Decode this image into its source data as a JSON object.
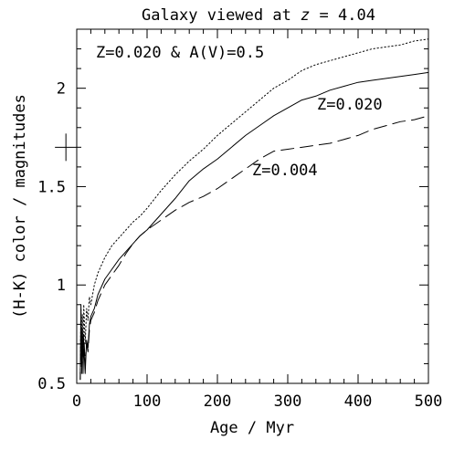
{
  "chart_data": {
    "type": "line",
    "title": "Galaxy viewed at z = 4.04",
    "xlabel": "Age / Myr",
    "ylabel": "(H-K) color / magnitudes",
    "xlim": [
      0,
      500
    ],
    "ylim": [
      0.5,
      2.3
    ],
    "x_ticks": [
      0,
      100,
      200,
      300,
      400,
      500
    ],
    "y_ticks": [
      0.5,
      1,
      1.5,
      2
    ],
    "x_tick_labels": [
      "0",
      "100",
      "200",
      "300",
      "400",
      "500"
    ],
    "y_tick_labels": [
      "0.5",
      "1",
      "1.5",
      "2"
    ],
    "x_minor_step": 20,
    "y_minor_step": 0.1,
    "grid": false,
    "legend": "none",
    "error_bar": {
      "x": 8,
      "y": 1.7
    },
    "series": [
      {
        "name": "Z=0.020",
        "style": "solid",
        "color": "#000000",
        "points": [
          [
            5,
            0.52
          ],
          [
            6,
            0.9
          ],
          [
            7,
            0.6
          ],
          [
            8,
            0.78
          ],
          [
            9,
            0.55
          ],
          [
            10,
            0.7
          ],
          [
            12,
            0.55
          ],
          [
            14,
            0.72
          ],
          [
            16,
            0.68
          ],
          [
            18,
            0.8
          ],
          [
            20,
            0.84
          ],
          [
            25,
            0.88
          ],
          [
            30,
            0.95
          ],
          [
            40,
            1.03
          ],
          [
            50,
            1.08
          ],
          [
            60,
            1.13
          ],
          [
            70,
            1.17
          ],
          [
            80,
            1.21
          ],
          [
            90,
            1.25
          ],
          [
            100,
            1.28
          ],
          [
            120,
            1.36
          ],
          [
            140,
            1.44
          ],
          [
            160,
            1.53
          ],
          [
            180,
            1.59
          ],
          [
            200,
            1.64
          ],
          [
            220,
            1.7
          ],
          [
            240,
            1.76
          ],
          [
            260,
            1.81
          ],
          [
            280,
            1.86
          ],
          [
            300,
            1.9
          ],
          [
            320,
            1.94
          ],
          [
            340,
            1.96
          ],
          [
            360,
            1.99
          ],
          [
            380,
            2.01
          ],
          [
            400,
            2.03
          ],
          [
            420,
            2.04
          ],
          [
            440,
            2.05
          ],
          [
            460,
            2.06
          ],
          [
            480,
            2.07
          ],
          [
            500,
            2.08
          ]
        ]
      },
      {
        "name": "Z=0.004",
        "style": "dashed",
        "color": "#000000",
        "points": [
          [
            5,
            0.52
          ],
          [
            6,
            0.78
          ],
          [
            7,
            0.55
          ],
          [
            8,
            0.72
          ],
          [
            9,
            0.6
          ],
          [
            10,
            0.75
          ],
          [
            12,
            0.6
          ],
          [
            14,
            0.7
          ],
          [
            16,
            0.66
          ],
          [
            18,
            0.77
          ],
          [
            20,
            0.82
          ],
          [
            25,
            0.86
          ],
          [
            30,
            0.92
          ],
          [
            40,
            1.0
          ],
          [
            50,
            1.05
          ],
          [
            60,
            1.1
          ],
          [
            70,
            1.16
          ],
          [
            80,
            1.21
          ],
          [
            90,
            1.25
          ],
          [
            100,
            1.28
          ],
          [
            120,
            1.33
          ],
          [
            140,
            1.38
          ],
          [
            160,
            1.42
          ],
          [
            180,
            1.45
          ],
          [
            200,
            1.49
          ],
          [
            220,
            1.54
          ],
          [
            240,
            1.59
          ],
          [
            260,
            1.64
          ],
          [
            280,
            1.68
          ],
          [
            300,
            1.69
          ],
          [
            320,
            1.7
          ],
          [
            340,
            1.71
          ],
          [
            360,
            1.72
          ],
          [
            380,
            1.74
          ],
          [
            400,
            1.76
          ],
          [
            420,
            1.79
          ],
          [
            440,
            1.81
          ],
          [
            460,
            1.83
          ],
          [
            480,
            1.84
          ],
          [
            500,
            1.86
          ]
        ]
      },
      {
        "name": "Z=0.020 & A(V)=0.5",
        "style": "dotted",
        "color": "#000000",
        "points": [
          [
            5,
            0.55
          ],
          [
            6,
            0.88
          ],
          [
            7,
            0.65
          ],
          [
            8,
            0.85
          ],
          [
            9,
            0.6
          ],
          [
            10,
            0.9
          ],
          [
            12,
            0.7
          ],
          [
            14,
            0.88
          ],
          [
            16,
            0.82
          ],
          [
            18,
            0.94
          ],
          [
            20,
            0.9
          ],
          [
            25,
            1.0
          ],
          [
            30,
            1.06
          ],
          [
            40,
            1.14
          ],
          [
            50,
            1.2
          ],
          [
            60,
            1.24
          ],
          [
            70,
            1.28
          ],
          [
            80,
            1.32
          ],
          [
            90,
            1.35
          ],
          [
            100,
            1.39
          ],
          [
            120,
            1.48
          ],
          [
            140,
            1.56
          ],
          [
            160,
            1.63
          ],
          [
            180,
            1.69
          ],
          [
            200,
            1.76
          ],
          [
            220,
            1.82
          ],
          [
            240,
            1.88
          ],
          [
            260,
            1.94
          ],
          [
            280,
            2.0
          ],
          [
            300,
            2.04
          ],
          [
            320,
            2.09
          ],
          [
            340,
            2.12
          ],
          [
            360,
            2.14
          ],
          [
            380,
            2.16
          ],
          [
            400,
            2.18
          ],
          [
            420,
            2.2
          ],
          [
            440,
            2.21
          ],
          [
            460,
            2.22
          ],
          [
            480,
            2.24
          ],
          [
            500,
            2.25
          ]
        ]
      }
    ]
  }
}
